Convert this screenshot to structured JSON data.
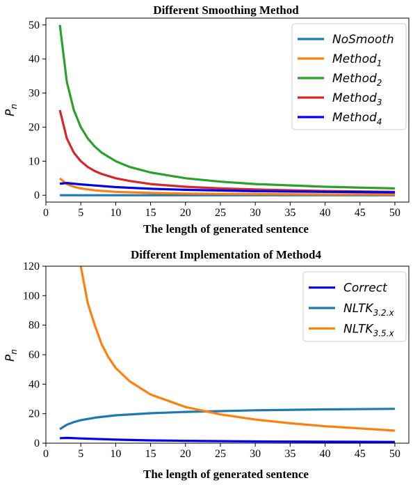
{
  "chart_data": [
    {
      "type": "line",
      "title": "Different Smoothing Method",
      "xlabel": "The length of generated sentence",
      "ylabel": "P_n",
      "xlim": [
        0,
        52
      ],
      "ylim": [
        -2,
        52
      ],
      "xticks": [
        0,
        5,
        10,
        15,
        20,
        25,
        30,
        35,
        40,
        45,
        50
      ],
      "yticks": [
        0,
        10,
        20,
        30,
        40,
        50
      ],
      "legend_position": "top-right",
      "series": [
        {
          "name": "NoSmooth",
          "base": "NoSmooth",
          "sub": "",
          "color": "#1f77b4",
          "x": [
            2,
            50
          ],
          "y": [
            0,
            0
          ]
        },
        {
          "name": "Method_1",
          "base": "Method",
          "sub": "1",
          "color": "#ff7f0e",
          "x": [
            2,
            3,
            4,
            5,
            7,
            10,
            15,
            20,
            30,
            40,
            50
          ],
          "y": [
            5,
            3.3,
            2.5,
            2,
            1.43,
            1,
            0.67,
            0.5,
            0.33,
            0.25,
            0.2
          ]
        },
        {
          "name": "Method_2",
          "base": "Method",
          "sub": "2",
          "color": "#2ca02c",
          "x": [
            2,
            3,
            4,
            5,
            6,
            7,
            8,
            10,
            12,
            15,
            20,
            25,
            30,
            40,
            50
          ],
          "y": [
            50,
            33.3,
            25,
            20,
            16.7,
            14.3,
            12.5,
            10,
            8.3,
            6.7,
            5,
            4,
            3.3,
            2.5,
            2
          ]
        },
        {
          "name": "Method_3",
          "base": "Method",
          "sub": "3",
          "color": "#d62728",
          "x": [
            2,
            3,
            4,
            5,
            6,
            7,
            8,
            10,
            12,
            15,
            20,
            25,
            30,
            40,
            50
          ],
          "y": [
            25,
            16.7,
            12.5,
            10,
            8.3,
            7.1,
            6.25,
            5,
            4.2,
            3.3,
            2.5,
            2,
            1.7,
            1.25,
            1
          ]
        },
        {
          "name": "Method_4",
          "base": "Method",
          "sub": "4",
          "color": "#0000ee",
          "x": [
            2,
            3,
            5,
            10,
            15,
            20,
            30,
            40,
            50
          ],
          "y": [
            3.4,
            3.6,
            3.2,
            2.4,
            1.9,
            1.6,
            1.2,
            1,
            0.85
          ]
        }
      ]
    },
    {
      "type": "line",
      "title": "Different Implementation of Method4",
      "xlabel": "The length of generated sentence",
      "ylabel": "P_n",
      "xlim": [
        0,
        52
      ],
      "ylim": [
        0,
        120
      ],
      "xticks": [
        0,
        5,
        10,
        15,
        20,
        25,
        30,
        35,
        40,
        45,
        50
      ],
      "yticks": [
        0,
        20,
        40,
        60,
        80,
        100,
        120
      ],
      "legend_position": "top-right",
      "series": [
        {
          "name": "Correct",
          "base": "Correct",
          "sub": "",
          "color": "#0000ee",
          "x": [
            2,
            3,
            5,
            10,
            15,
            20,
            30,
            40,
            50
          ],
          "y": [
            3.4,
            3.6,
            3.2,
            2.4,
            1.9,
            1.6,
            1.2,
            1,
            0.85
          ]
        },
        {
          "name": "NLTK_3.2.x",
          "base": "NLTK",
          "sub": "3.2.x",
          "color": "#1f77b4",
          "x": [
            2,
            3,
            4,
            5,
            7,
            10,
            15,
            20,
            30,
            40,
            50
          ],
          "y": [
            9.5,
            12.5,
            14.3,
            15.6,
            17.3,
            18.9,
            20.3,
            21.2,
            22.3,
            22.9,
            23.3
          ]
        },
        {
          "name": "NLTK_3.5.x",
          "base": "NLTK",
          "sub": "3.5.x",
          "color": "#ff7f0e",
          "x": [
            5,
            6,
            7,
            8,
            9,
            10,
            12,
            15,
            20,
            25,
            30,
            35,
            40,
            45,
            50
          ],
          "y": [
            120,
            95,
            80,
            67,
            58,
            51,
            42,
            33,
            24.5,
            19.5,
            16,
            13.5,
            11.5,
            10,
            8.5
          ]
        }
      ]
    }
  ]
}
